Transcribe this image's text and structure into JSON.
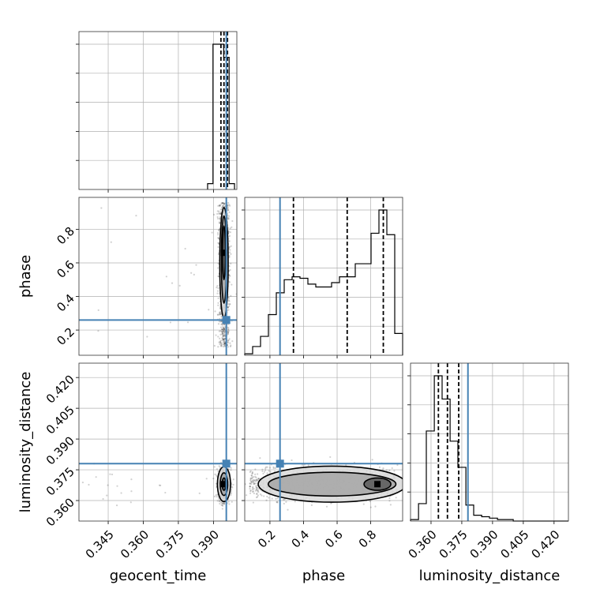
{
  "chart_data": {
    "type": "corner",
    "parameters": [
      "geocent_time",
      "phase",
      "luminosity_distance"
    ],
    "truth_color": "#4682b4",
    "truths": {
      "geocent_time": 0.3955,
      "phase": 0.26,
      "luminosity_distance": 0.378
    },
    "axes": {
      "geocent_time": {
        "range": [
          0.3325,
          0.4
        ],
        "ticks": [
          0.345,
          0.36,
          0.375,
          0.39
        ],
        "tick_labels": [
          "0.345",
          "0.360",
          "0.375",
          "0.390"
        ]
      },
      "phase": {
        "range": [
          0.05,
          0.99
        ],
        "ticks": [
          0.2,
          0.4,
          0.6,
          0.8
        ],
        "tick_labels": [
          "0.2",
          "0.4",
          "0.6",
          "0.8"
        ]
      },
      "luminosity_distance": {
        "range": [
          0.35,
          0.427
        ],
        "ticks": [
          0.36,
          0.375,
          0.39,
          0.405,
          0.42
        ],
        "tick_labels": [
          "0.360",
          "0.375",
          "0.390",
          "0.405",
          "0.420"
        ]
      }
    },
    "histograms": {
      "geocent_time": {
        "edges": [
          0.3875,
          0.3898,
          0.3921,
          0.3944,
          0.3967,
          0.399
        ],
        "counts": [
          0.04,
          1.0,
          1.0,
          0.91,
          0.04
        ],
        "quantiles": [
          0.3932,
          0.3945,
          0.396
        ]
      },
      "phase": {
        "edges": [
          0.05,
          0.097,
          0.144,
          0.191,
          0.238,
          0.285,
          0.332,
          0.379,
          0.426,
          0.473,
          0.52,
          0.567,
          0.614,
          0.661,
          0.708,
          0.755,
          0.802,
          0.849,
          0.896,
          0.943,
          0.99
        ],
        "counts": [
          0.01,
          0.06,
          0.13,
          0.28,
          0.43,
          0.52,
          0.54,
          0.53,
          0.49,
          0.47,
          0.47,
          0.5,
          0.54,
          0.54,
          0.63,
          0.63,
          0.84,
          1.0,
          0.83,
          0.15
        ],
        "quantiles": [
          0.34,
          0.66,
          0.875
        ]
      },
      "luminosity_distance": {
        "edges": [
          0.35,
          0.3539,
          0.3577,
          0.3616,
          0.3654,
          0.3693,
          0.3731,
          0.377,
          0.3808,
          0.3847,
          0.3885,
          0.3924,
          0.3962,
          0.4001,
          0.4039,
          0.4078,
          0.4116,
          0.4155,
          0.4193,
          0.4232,
          0.427
        ],
        "counts": [
          0.01,
          0.12,
          0.62,
          1.0,
          0.84,
          0.55,
          0.37,
          0.11,
          0.04,
          0.03,
          0.02,
          0.01,
          0.01,
          0.0,
          0.0,
          0.0,
          0.0,
          0.0,
          0.0,
          0.0
        ],
        "quantiles": [
          0.3636,
          0.368,
          0.3735
        ]
      }
    },
    "pairs": [
      {
        "x": "geocent_time",
        "y": "phase",
        "center": [
          0.3945,
          0.58
        ],
        "spread": [
          0.0012,
          0.2
        ],
        "contours": [
          {
            "cx": 0.3945,
            "cy": 0.6,
            "rx": 0.0018,
            "ry": 0.33
          },
          {
            "cx": 0.3945,
            "cy": 0.62,
            "rx": 0.0011,
            "ry": 0.26
          },
          {
            "cx": 0.3945,
            "cy": 0.66,
            "rx": 0.0006,
            "ry": 0.16
          }
        ]
      },
      {
        "x": "geocent_time",
        "y": "luminosity_distance",
        "center": [
          0.3945,
          0.368
        ],
        "spread": [
          0.0012,
          0.004
        ],
        "contours": [
          {
            "cx": 0.3945,
            "cy": 0.368,
            "rx": 0.0028,
            "ry": 0.0085
          },
          {
            "cx": 0.3945,
            "cy": 0.368,
            "rx": 0.0016,
            "ry": 0.0055
          },
          {
            "cx": 0.3945,
            "cy": 0.368,
            "rx": 0.0008,
            "ry": 0.003
          }
        ]
      },
      {
        "x": "phase",
        "y": "luminosity_distance",
        "center": [
          0.6,
          0.368
        ],
        "spread": [
          0.22,
          0.004
        ],
        "contours": [
          {
            "cx": 0.57,
            "cy": 0.368,
            "rx": 0.44,
            "ry": 0.0088
          },
          {
            "cx": 0.57,
            "cy": 0.368,
            "rx": 0.38,
            "ry": 0.0058
          },
          {
            "cx": 0.84,
            "cy": 0.368,
            "rx": 0.08,
            "ry": 0.003
          }
        ]
      }
    ]
  }
}
